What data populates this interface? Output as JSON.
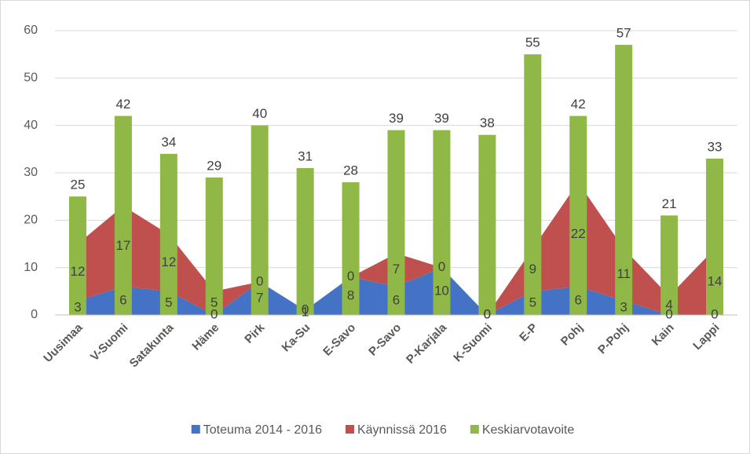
{
  "chart_data": {
    "type": "combo",
    "categories": [
      "Uusimaa",
      "V-Suomi",
      "Satakunta",
      "Häme",
      "Pirk",
      "Ka-Su",
      "E-Savo",
      "P-Savo",
      "P-Karjala",
      "K-Suomi",
      "E-P",
      "Pohj",
      "P-Pohj",
      "Kain",
      "Lappi"
    ],
    "series": [
      {
        "name": "Toteuma 2014 - 2016",
        "color": "#4472c4",
        "type": "area",
        "stacked": true,
        "values": [
          3,
          6,
          5,
          0,
          7,
          1,
          8,
          6,
          10,
          0,
          5,
          6,
          3,
          0,
          0
        ]
      },
      {
        "name": "Käynnissä 2016",
        "color": "#c0504d",
        "type": "area",
        "stacked": true,
        "values": [
          12,
          17,
          12,
          5,
          0,
          0,
          0,
          7,
          0,
          0,
          9,
          22,
          11,
          4,
          14
        ]
      },
      {
        "name": "Keskiarvotavoite",
        "color": "#8fb846",
        "type": "bar",
        "values": [
          25,
          42,
          34,
          29,
          40,
          31,
          28,
          39,
          39,
          38,
          55,
          42,
          57,
          21,
          33
        ]
      }
    ],
    "ylim": [
      0,
      60
    ],
    "yticks": [
      0,
      10,
      20,
      30,
      40,
      50,
      60
    ],
    "grid": true,
    "legend": "bottom"
  }
}
